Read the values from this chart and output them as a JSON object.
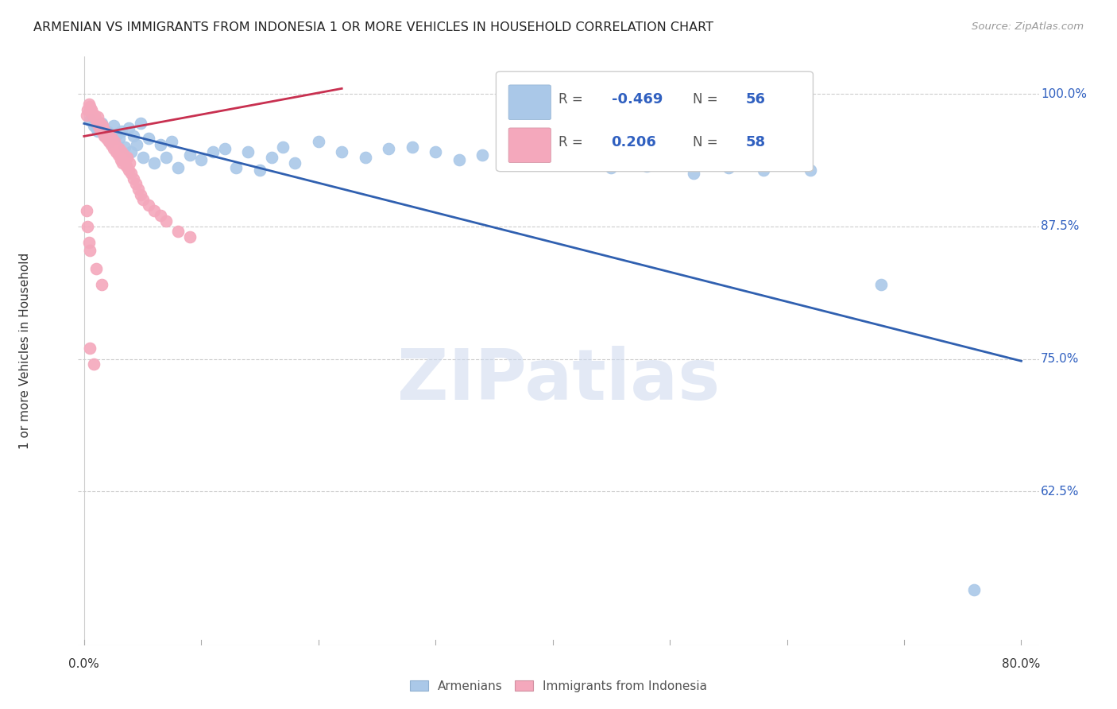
{
  "title": "ARMENIAN VS IMMIGRANTS FROM INDONESIA 1 OR MORE VEHICLES IN HOUSEHOLD CORRELATION CHART",
  "source": "Source: ZipAtlas.com",
  "ylabel": "1 or more Vehicles in Household",
  "ylim": [
    0.48,
    1.035
  ],
  "xlim": [
    -0.005,
    0.815
  ],
  "ytick_vals": [
    0.625,
    0.75,
    0.875,
    1.0
  ],
  "ytick_labels": [
    "62.5%",
    "75.0%",
    "87.5%",
    "100.0%"
  ],
  "xtick_vals": [
    0.0,
    0.1,
    0.2,
    0.3,
    0.4,
    0.5,
    0.6,
    0.7,
    0.8
  ],
  "blue_R": -0.469,
  "blue_N": 56,
  "pink_R": 0.206,
  "pink_N": 58,
  "blue_color": "#aac8e8",
  "pink_color": "#f4a8bc",
  "blue_line_color": "#3060b0",
  "pink_line_color": "#c83050",
  "watermark_text": "ZIPatlas",
  "blue_points_x": [
    0.005,
    0.008,
    0.01,
    0.012,
    0.015,
    0.018,
    0.02,
    0.022,
    0.025,
    0.028,
    0.03,
    0.032,
    0.035,
    0.038,
    0.04,
    0.042,
    0.045,
    0.048,
    0.05,
    0.055,
    0.06,
    0.065,
    0.07,
    0.075,
    0.08,
    0.09,
    0.1,
    0.11,
    0.12,
    0.13,
    0.14,
    0.15,
    0.16,
    0.17,
    0.18,
    0.2,
    0.22,
    0.24,
    0.26,
    0.28,
    0.3,
    0.32,
    0.34,
    0.36,
    0.38,
    0.4,
    0.42,
    0.45,
    0.48,
    0.5,
    0.52,
    0.55,
    0.58,
    0.62,
    0.68,
    0.76
  ],
  "blue_points_y": [
    0.975,
    0.97,
    0.968,
    0.965,
    0.972,
    0.96,
    0.965,
    0.955,
    0.97,
    0.962,
    0.958,
    0.965,
    0.95,
    0.968,
    0.945,
    0.96,
    0.952,
    0.972,
    0.94,
    0.958,
    0.935,
    0.952,
    0.94,
    0.955,
    0.93,
    0.942,
    0.938,
    0.945,
    0.948,
    0.93,
    0.945,
    0.928,
    0.94,
    0.95,
    0.935,
    0.955,
    0.945,
    0.94,
    0.948,
    0.95,
    0.945,
    0.938,
    0.942,
    0.95,
    0.938,
    0.935,
    0.94,
    0.93,
    0.932,
    0.938,
    0.925,
    0.93,
    0.928,
    0.928,
    0.82,
    0.532
  ],
  "pink_points_x": [
    0.002,
    0.003,
    0.004,
    0.005,
    0.006,
    0.007,
    0.008,
    0.009,
    0.01,
    0.011,
    0.012,
    0.013,
    0.014,
    0.015,
    0.016,
    0.017,
    0.018,
    0.019,
    0.02,
    0.021,
    0.022,
    0.023,
    0.024,
    0.025,
    0.026,
    0.027,
    0.028,
    0.029,
    0.03,
    0.031,
    0.032,
    0.033,
    0.034,
    0.035,
    0.036,
    0.037,
    0.038,
    0.039,
    0.04,
    0.042,
    0.044,
    0.046,
    0.048,
    0.05,
    0.055,
    0.06,
    0.065,
    0.07,
    0.08,
    0.09,
    0.002,
    0.003,
    0.004,
    0.005,
    0.01,
    0.015,
    0.005,
    0.008
  ],
  "pink_points_y": [
    0.98,
    0.985,
    0.99,
    0.988,
    0.985,
    0.982,
    0.978,
    0.98,
    0.975,
    0.972,
    0.978,
    0.968,
    0.972,
    0.965,
    0.97,
    0.96,
    0.965,
    0.958,
    0.962,
    0.955,
    0.96,
    0.952,
    0.958,
    0.948,
    0.955,
    0.945,
    0.95,
    0.942,
    0.948,
    0.938,
    0.945,
    0.935,
    0.942,
    0.938,
    0.932,
    0.94,
    0.928,
    0.935,
    0.925,
    0.92,
    0.915,
    0.91,
    0.905,
    0.9,
    0.895,
    0.89,
    0.885,
    0.88,
    0.87,
    0.865,
    0.89,
    0.875,
    0.86,
    0.852,
    0.835,
    0.82,
    0.76,
    0.745
  ]
}
